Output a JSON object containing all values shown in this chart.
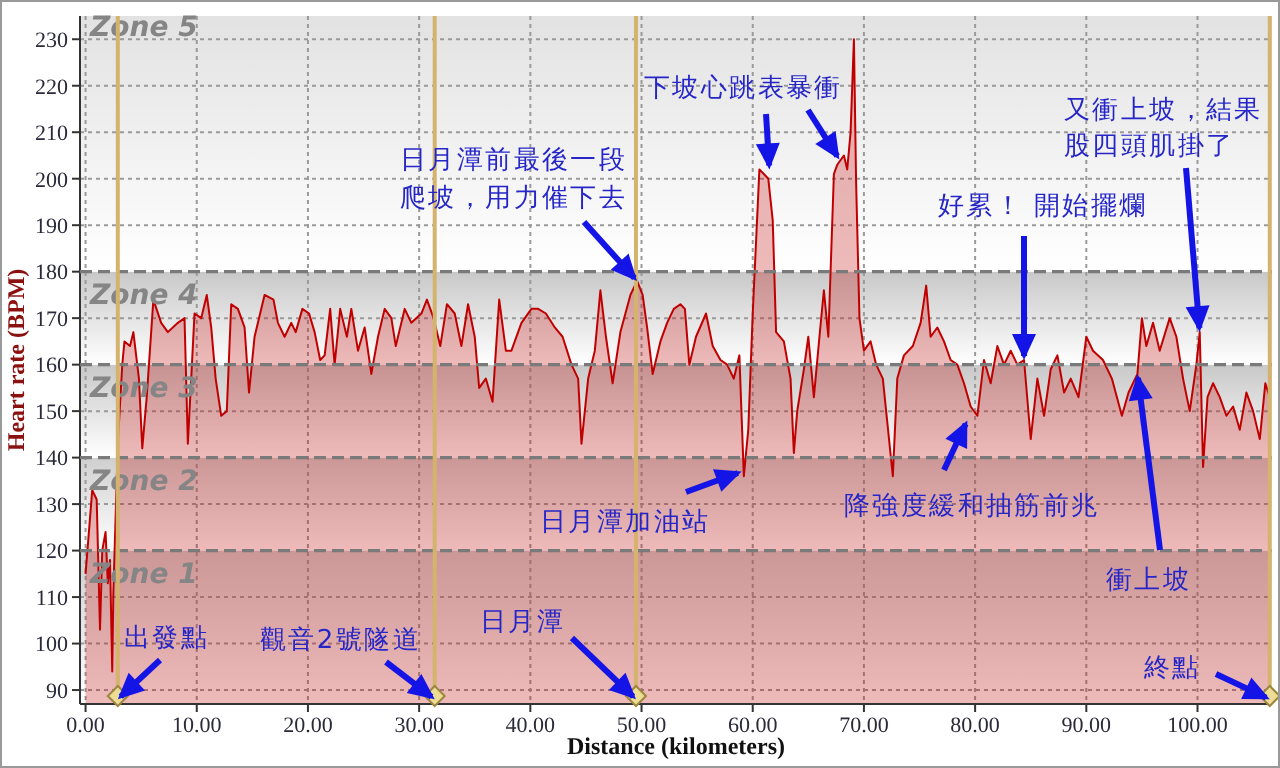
{
  "chart_data": {
    "type": "area",
    "xlabel": "Distance (kilometers)",
    "ylabel": "Heart rate (BPM)",
    "color": "#c00000",
    "x": [
      0,
      0.6,
      1.0,
      1.3,
      1.5,
      1.8,
      2.0,
      2.2,
      2.4,
      2.5,
      2.7,
      2.9,
      3.3,
      3.5,
      4.0,
      4.3,
      4.8,
      5.1,
      5.5,
      6.1,
      6.8,
      7.4,
      8.3,
      8.9,
      9.2,
      9.5,
      9.8,
      10.4,
      10.9,
      11.3,
      11.7,
      12.2,
      12.7,
      13.1,
      13.7,
      14.3,
      14.7,
      15.2,
      16.1,
      16.9,
      17.3,
      17.9,
      18.5,
      18.9,
      19.5,
      20.1,
      20.6,
      21.1,
      21.5,
      22.0,
      22.4,
      22.9,
      23.5,
      23.9,
      24.5,
      25.1,
      25.7,
      26.3,
      26.9,
      27.5,
      27.9,
      28.7,
      29.3,
      30.2,
      30.7,
      31.3,
      31.9,
      32.5,
      33.2,
      33.8,
      34.4,
      35.0,
      35.4,
      36.0,
      36.6,
      37.2,
      37.8,
      38.3,
      39.2,
      40.1,
      40.7,
      41.4,
      42.2,
      42.9,
      43.7,
      44.3,
      44.6,
      45.2,
      45.8,
      46.3,
      46.8,
      47.4,
      48.1,
      49.0,
      49.6,
      50.1,
      50.5,
      51.0,
      51.7,
      52.3,
      52.9,
      53.5,
      53.9,
      54.3,
      54.9,
      55.8,
      56.4,
      57.1,
      57.7,
      58.3,
      58.8,
      59.2,
      59.6,
      60.0,
      60.6,
      61.0,
      61.4,
      61.8,
      62.1,
      62.8,
      63.4,
      63.7,
      64.0,
      64.6,
      65.0,
      65.5,
      66.0,
      66.4,
      66.8,
      67.3,
      67.6,
      68.2,
      68.5,
      68.8,
      69.1,
      69.3,
      69.6,
      70.0,
      70.6,
      71.1,
      71.7,
      72.6,
      73.0,
      73.6,
      74.4,
      75.1,
      75.6,
      76.0,
      76.6,
      77.2,
      77.8,
      78.4,
      79.0,
      79.6,
      80.2,
      80.8,
      81.4,
      82.0,
      82.6,
      83.2,
      83.8,
      84.4,
      85.0,
      85.6,
      86.2,
      86.8,
      87.4,
      88.0,
      88.6,
      89.3,
      90.0,
      90.6,
      91.5,
      92.3,
      93.2,
      93.8,
      94.6,
      95.0,
      95.4,
      96.0,
      96.6,
      97.5,
      98.1,
      98.7,
      99.3,
      99.9,
      100.2,
      100.5,
      100.9,
      101.4,
      102.0,
      102.6,
      103.2,
      103.8,
      104.4,
      105.0,
      105.6,
      106.1,
      106.5
    ],
    "values": [
      115,
      133,
      131,
      103,
      120,
      124,
      113,
      118,
      94,
      111,
      127,
      143,
      160,
      165,
      164,
      167,
      157,
      142,
      153,
      174,
      169,
      167,
      169,
      170,
      143,
      157,
      171,
      170,
      175,
      168,
      157,
      149,
      150,
      173,
      172,
      168,
      154,
      166,
      175,
      174,
      169,
      166,
      169,
      167,
      172,
      171,
      167,
      161,
      162,
      172,
      160,
      172,
      166,
      172,
      163,
      168,
      158,
      166,
      172,
      170,
      164,
      172,
      169,
      171,
      174,
      170,
      164,
      173,
      171,
      164,
      173,
      166,
      155,
      157,
      152,
      174,
      163,
      163,
      169,
      172,
      172,
      171,
      168,
      166,
      160,
      157,
      143,
      157,
      163,
      176,
      166,
      156,
      167,
      175,
      178,
      175,
      168,
      158,
      165,
      169,
      172,
      173,
      172,
      160,
      166,
      171,
      164,
      161,
      160,
      157,
      162,
      136,
      146,
      171,
      202,
      201,
      200,
      191,
      167,
      165,
      157,
      141,
      150,
      159,
      166,
      153,
      166,
      176,
      166,
      201,
      203,
      205,
      202,
      210,
      230,
      199,
      170,
      163,
      165,
      160,
      157,
      136,
      157,
      162,
      164,
      169,
      177,
      166,
      168,
      165,
      161,
      160,
      156,
      151,
      149,
      161,
      156,
      164,
      160,
      163,
      160,
      161,
      144,
      157,
      149,
      159,
      162,
      154,
      157,
      153,
      166,
      163,
      161,
      157,
      149,
      154,
      158,
      170,
      164,
      169,
      163,
      170,
      166,
      157,
      150,
      160,
      167,
      138,
      153,
      156,
      153,
      149,
      151,
      146,
      154,
      150,
      144,
      156,
      153
    ],
    "xlim": [
      -0.5,
      106.7
    ],
    "xticks": [
      {
        "value": 0,
        "label": "0.00"
      },
      {
        "value": 10,
        "label": "10.00"
      },
      {
        "value": 20,
        "label": "20.00"
      },
      {
        "value": 30,
        "label": "30.00"
      },
      {
        "value": 40,
        "label": "40.00"
      },
      {
        "value": 50,
        "label": "50.00"
      },
      {
        "value": 60,
        "label": "60.00"
      },
      {
        "value": 70,
        "label": "70.00"
      },
      {
        "value": 80,
        "label": "80.00"
      },
      {
        "value": 90,
        "label": "90.00"
      },
      {
        "value": 100,
        "label": "100.00"
      }
    ],
    "ylim": [
      87,
      235
    ],
    "yticks": [
      90,
      100,
      110,
      120,
      130,
      140,
      150,
      160,
      170,
      180,
      190,
      200,
      210,
      220,
      230
    ],
    "grid": true,
    "bands": [
      {
        "axis": "y",
        "from": 87,
        "to": 120,
        "label": "Zone 1",
        "color": "#cfcfcf"
      },
      {
        "axis": "y",
        "from": 120,
        "to": 140,
        "label": "Zone 2",
        "color": "#cfcfcf"
      },
      {
        "axis": "y",
        "from": 140,
        "to": 160,
        "label": "Zone 3",
        "color": "#c8c8c8"
      },
      {
        "axis": "y",
        "from": 160,
        "to": 180,
        "label": "Zone 4",
        "color": "#c8c8c8"
      },
      {
        "axis": "y",
        "from": 180,
        "to": 235,
        "label": "Zone 5",
        "color": "#e2e2e2"
      }
    ],
    "ref_lines": [
      {
        "axis": "x",
        "value": 2.9,
        "color": "#d4b46c",
        "line_style": "solid"
      },
      {
        "axis": "x",
        "value": 31.4,
        "color": "#d4b46c",
        "line_style": "solid"
      },
      {
        "axis": "x",
        "value": 49.5,
        "color": "#d4b46c",
        "line_style": "solid"
      },
      {
        "axis": "x",
        "value": 106.5,
        "color": "#d4b46c",
        "line_style": "solid"
      }
    ],
    "annotations": [
      {
        "text": "出發點",
        "x": 2.9,
        "y": 88
      },
      {
        "text": "觀音2號隧道",
        "x": 31.4,
        "y": 88
      },
      {
        "text": "日月潭",
        "x": 49.5,
        "y": 88
      },
      {
        "text": "日月潭前最後一段爬坡，用力催下去",
        "x": 49.6,
        "y": 178
      },
      {
        "text": "下坡心跳表暴衝",
        "x": 61.5,
        "y": 202
      },
      {
        "text": "日月潭加油站",
        "x": 59.0,
        "y": 137
      },
      {
        "text": "降強度緩和抽筋前兆",
        "x": 79.3,
        "y": 148
      },
      {
        "text": "好累！ 開始擺爛",
        "x": 84.4,
        "y": 161
      },
      {
        "text": "又衝上坡，結果股四頭肌掛了",
        "x": 100.2,
        "y": 167
      },
      {
        "text": "衝上坡",
        "x": 94.6,
        "y": 158
      },
      {
        "text": "終點",
        "x": 106.5,
        "y": 88
      }
    ]
  }
}
